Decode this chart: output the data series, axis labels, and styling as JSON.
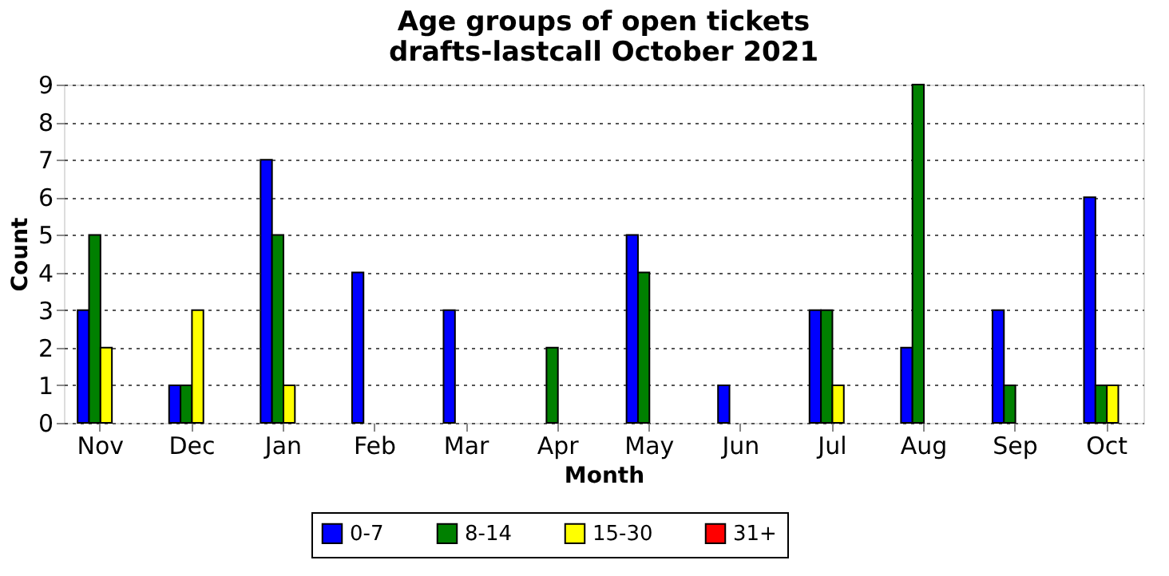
{
  "chart_data": {
    "type": "bar",
    "title": [
      "Age groups of open tickets",
      "drafts-lastcall October 2021"
    ],
    "xlabel": "Month",
    "ylabel": "Count",
    "categories": [
      "Nov",
      "Dec",
      "Jan",
      "Feb",
      "Mar",
      "Apr",
      "May",
      "Jun",
      "Jul",
      "Aug",
      "Sep",
      "Oct"
    ],
    "series": [
      {
        "name": "0-7",
        "color": "#0000ff",
        "values": [
          3,
          1,
          7,
          4,
          3,
          0,
          5,
          1,
          3,
          2,
          3,
          6
        ]
      },
      {
        "name": "8-14",
        "color": "#008000",
        "values": [
          5,
          1,
          5,
          0,
          0,
          2,
          4,
          0,
          3,
          9,
          1,
          1
        ]
      },
      {
        "name": "15-30",
        "color": "#ffff00",
        "values": [
          2,
          3,
          1,
          0,
          0,
          0,
          0,
          0,
          1,
          0,
          0,
          1
        ]
      },
      {
        "name": "31+",
        "color": "#ff0000",
        "values": [
          0,
          0,
          0,
          0,
          0,
          0,
          0,
          0,
          0,
          0,
          0,
          0
        ]
      }
    ],
    "ylim": [
      0,
      9
    ],
    "yticks": [
      0,
      1,
      2,
      3,
      4,
      5,
      6,
      7,
      8,
      9
    ],
    "grid": "y",
    "legend": "bottom"
  }
}
